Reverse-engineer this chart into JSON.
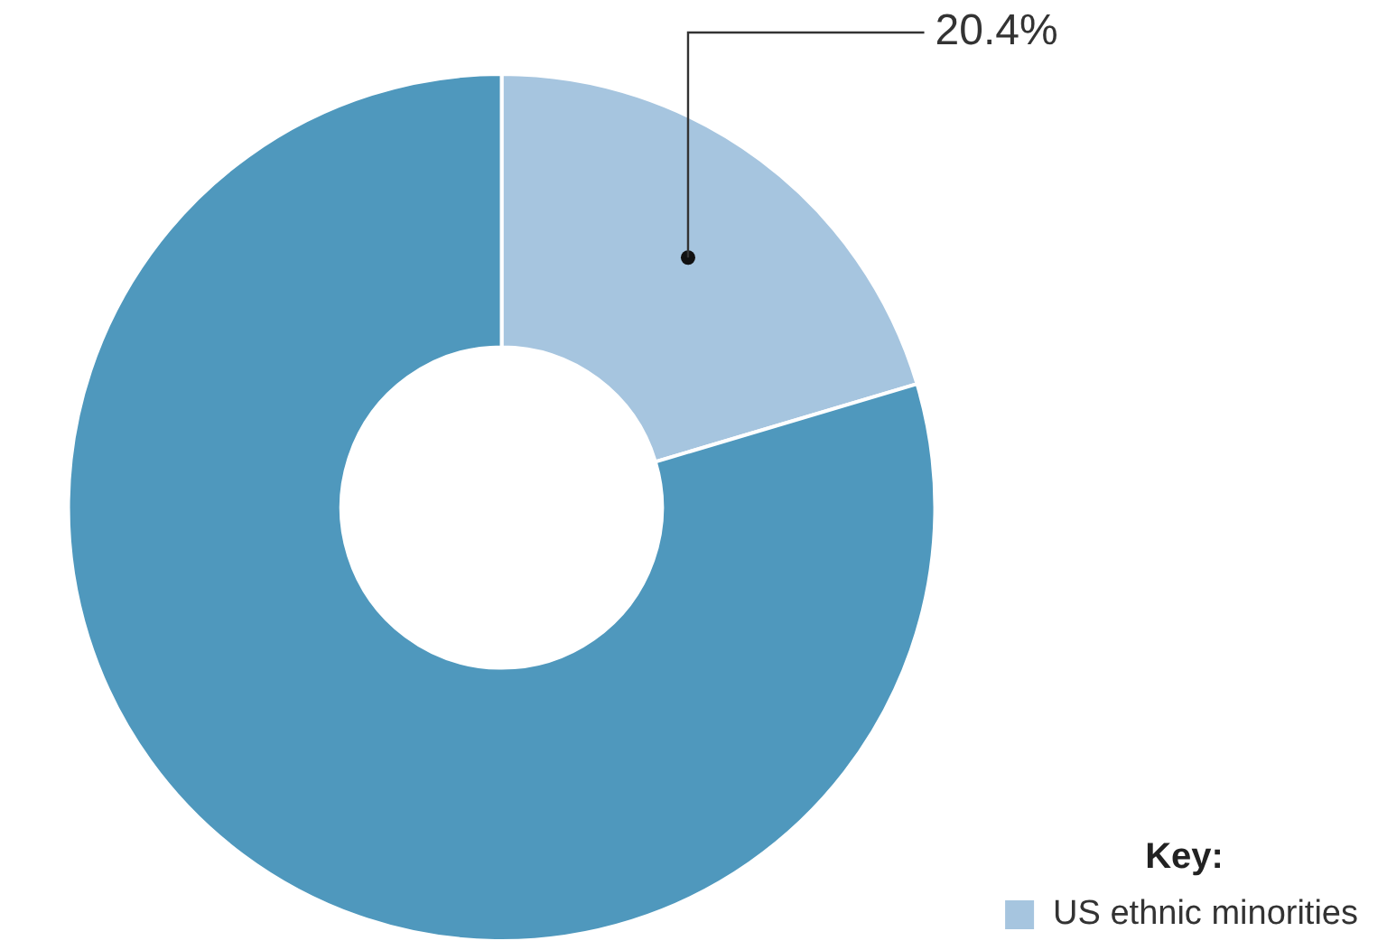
{
  "chart_data": {
    "type": "donut",
    "legend_title": "Key:",
    "categories": [
      "US ethnic minorities",
      null
    ],
    "values": [
      20.4,
      79.6
    ],
    "colors": [
      "#a6c5df",
      "#4f98bd"
    ],
    "value_labels": [
      "20.4%",
      null
    ],
    "legend": "bottom right"
  }
}
